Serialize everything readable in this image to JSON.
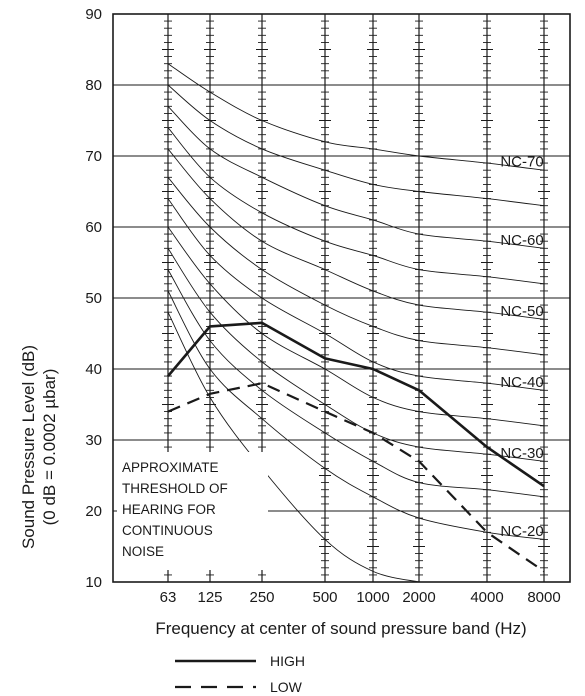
{
  "chart_data": {
    "type": "line",
    "x_categories": [
      "63",
      "125",
      "250",
      "500",
      "1000",
      "2000",
      "4000",
      "8000"
    ],
    "xlabel": "Frequency at center of sound pressure band (Hz)",
    "ylabel_line1": "Sound Pressure Level (dB)",
    "ylabel_line2": "(0 dB = 0.0002 µbar)",
    "ylim": [
      10,
      90
    ],
    "y_ticks": [
      10,
      20,
      30,
      40,
      50,
      60,
      70,
      80,
      90
    ],
    "grid": true,
    "nc_curves": [
      {
        "label": "NC-70",
        "values": [
          83,
          79,
          75,
          72,
          71,
          70,
          69,
          68
        ]
      },
      {
        "label": "",
        "values": [
          80,
          75,
          71,
          68,
          66,
          65,
          64,
          63
        ]
      },
      {
        "label": "NC-60",
        "values": [
          77,
          71,
          67,
          63,
          61,
          59,
          58,
          57
        ]
      },
      {
        "label": "",
        "values": [
          74,
          67,
          62,
          58,
          56,
          54,
          53,
          52
        ]
      },
      {
        "label": "NC-50",
        "values": [
          71,
          64,
          58,
          54,
          51,
          49,
          48,
          47
        ]
      },
      {
        "label": "",
        "values": [
          67,
          60,
          54,
          49,
          46,
          44,
          43,
          42
        ]
      },
      {
        "label": "NC-40",
        "values": [
          64,
          56,
          50,
          45,
          41,
          39,
          38,
          37
        ]
      },
      {
        "label": "",
        "values": [
          60,
          52,
          45,
          40,
          36,
          34,
          33,
          32
        ]
      },
      {
        "label": "NC-30",
        "values": [
          57,
          48,
          41,
          35,
          31,
          29,
          28,
          27
        ]
      },
      {
        "label": "",
        "values": [
          54,
          44,
          37,
          31,
          27,
          24,
          23,
          22
        ]
      },
      {
        "label": "NC-20",
        "values": [
          51,
          40,
          33,
          26,
          22,
          19,
          17,
          16
        ]
      },
      {
        "label": "",
        "values": [
          48,
          36,
          26,
          16,
          11.5,
          10
        ]
      }
    ],
    "series": [
      {
        "name": "HIGH",
        "style": "solid",
        "values": [
          39,
          46,
          46.5,
          41.5,
          40,
          37,
          29,
          23.5
        ]
      },
      {
        "name": "LOW",
        "style": "dashed",
        "values": [
          34,
          36.5,
          38,
          34,
          31,
          27,
          17,
          11.5
        ]
      }
    ],
    "annotation": [
      "APPROXIMATE",
      "THRESHOLD OF",
      "HEARING FOR",
      "CONTINUOUS",
      "NOISE"
    ],
    "legend_position": "bottom-center"
  }
}
